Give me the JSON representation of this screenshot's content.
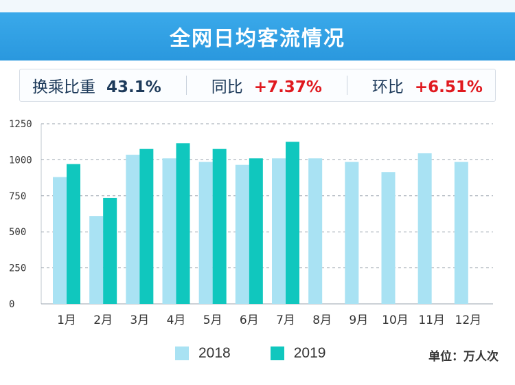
{
  "header": {
    "title": "全网日均客流情况"
  },
  "stats": [
    {
      "label": "换乘比重",
      "value": "43.1%",
      "tone": "dark"
    },
    {
      "label": "同比",
      "value": "+7.37%",
      "tone": "red"
    },
    {
      "label": "环比",
      "value": "+6.51%",
      "tone": "red"
    }
  ],
  "unit_label": "单位：万人次",
  "colors": {
    "s2018": "#a9e2f3",
    "s2019": "#10c7be",
    "accent": "#2a98de",
    "red": "#e0191f"
  },
  "chart_data": {
    "type": "bar",
    "categories": [
      "1月",
      "2月",
      "3月",
      "4月",
      "5月",
      "6月",
      "7月",
      "8月",
      "9月",
      "10月",
      "11月",
      "12月"
    ],
    "series": [
      {
        "name": "2018",
        "values": [
          880,
          610,
          1035,
          1010,
          985,
          965,
          1010,
          1010,
          985,
          915,
          1045,
          985
        ]
      },
      {
        "name": "2019",
        "values": [
          970,
          735,
          1075,
          1115,
          1075,
          1010,
          1125,
          null,
          null,
          null,
          null,
          null
        ]
      }
    ],
    "ylim": [
      0,
      1250
    ],
    "yticks": [
      0,
      250,
      500,
      750,
      1000,
      1250
    ],
    "grid": true,
    "legend": "bottom"
  }
}
